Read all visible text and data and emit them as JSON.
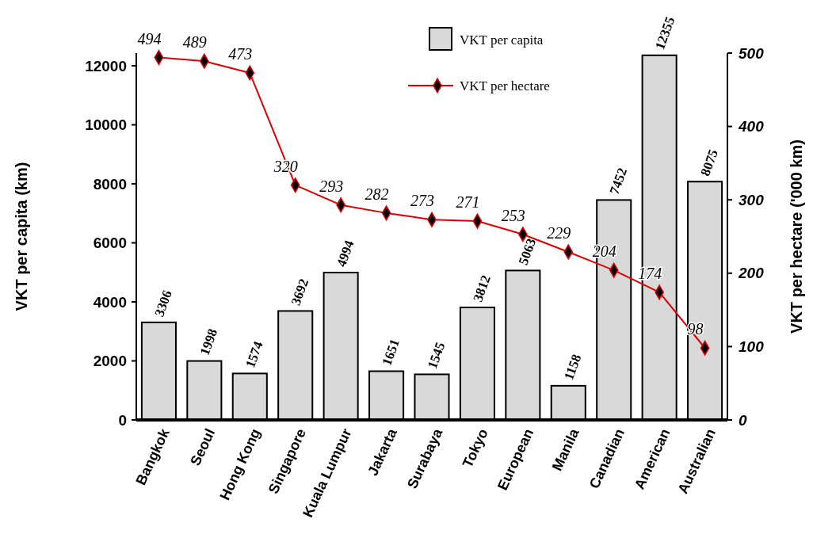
{
  "chart_data": {
    "type": "bar",
    "categories": [
      "Bangkok",
      "Seoul",
      "Hong Kong",
      "Singapore",
      "Kuala Lumpur",
      "Jakarta",
      "Surabaya",
      "Tokyo",
      "European",
      "Manila",
      "Canadian",
      "American",
      "Australian"
    ],
    "series": [
      {
        "name": "VKT per capita",
        "color": "#d9d9d9",
        "values": [
          3306,
          1998,
          1574,
          3692,
          4994,
          1651,
          1545,
          3812,
          5063,
          1158,
          7452,
          12355,
          8075
        ]
      },
      {
        "name": "VKT per hectare",
        "type": "line",
        "axis": "y2",
        "color": "#e00000",
        "values": [
          494,
          489,
          473,
          320,
          293,
          282,
          273,
          271,
          253,
          229,
          204,
          174,
          98
        ]
      }
    ],
    "ylabel": "VKT per capita (km)",
    "y2label": "VKT per hectare ('000 km)",
    "ylim": [
      0,
      12430
    ],
    "yticks": [
      0,
      2000,
      4000,
      6000,
      8000,
      10000,
      12000
    ],
    "y2lim": [
      0,
      500
    ],
    "y2ticks": [
      0,
      100,
      200,
      300,
      400,
      500
    ],
    "data_labels": true,
    "marker": "diamond",
    "legend": "top",
    "grid": false
  }
}
